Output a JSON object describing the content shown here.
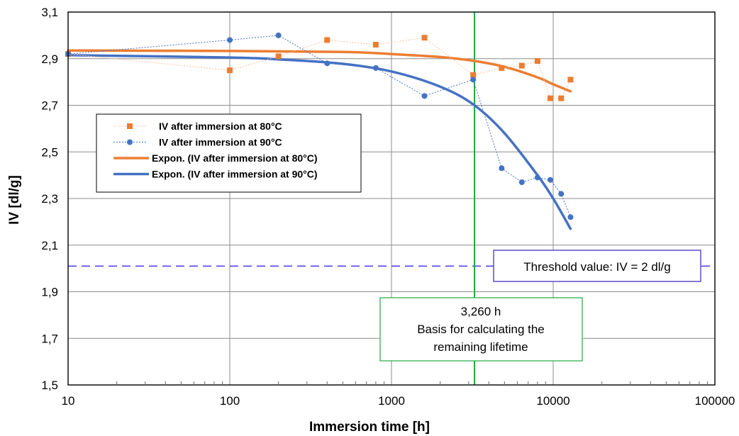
{
  "chart_data": {
    "type": "scatter",
    "xlabel": "Immersion time [h]",
    "ylabel": "IV  [dl/g]",
    "x_scale": "log",
    "xlim": [
      10,
      100000
    ],
    "ylim": [
      1.5,
      3.1
    ],
    "x_ticks": [
      10,
      100,
      1000,
      10000,
      100000
    ],
    "x_tick_labels": [
      "10",
      "100",
      "1000",
      "10000",
      "100000"
    ],
    "y_ticks": [
      1.5,
      1.7,
      1.9,
      2.1,
      2.3,
      2.5,
      2.7,
      2.9,
      3.1
    ],
    "y_tick_labels": [
      "1,5",
      "1,7",
      "1,9",
      "2,1",
      "2,3",
      "2,5",
      "2,7",
      "2,9",
      "3,1"
    ],
    "grid": true,
    "legend_position": "left-middle",
    "series": [
      {
        "name": "IV after immersion at 80°C",
        "kind": "markers",
        "marker": "square",
        "color": "#ED7D31",
        "x": [
          10,
          100,
          200,
          400,
          800,
          1600,
          3200,
          4800,
          6400,
          8000,
          9600,
          11200,
          12800
        ],
        "y": [
          2.92,
          2.85,
          2.91,
          2.98,
          2.96,
          2.99,
          2.83,
          2.86,
          2.87,
          2.89,
          2.73,
          2.73,
          2.81
        ]
      },
      {
        "name": "IV after immersion at 90°C",
        "kind": "markers",
        "marker": "circle",
        "color": "#4472C4",
        "x": [
          10,
          100,
          200,
          400,
          800,
          1600,
          3200,
          4800,
          6400,
          8000,
          9600,
          11200,
          12800
        ],
        "y": [
          2.92,
          2.98,
          3.0,
          2.88,
          2.86,
          2.74,
          2.81,
          2.43,
          2.37,
          2.39,
          2.38,
          2.32,
          2.22
        ]
      },
      {
        "name": "Expon. (IV after immersion at 80°C)",
        "kind": "trend",
        "color": "#ED7D31",
        "x": [
          10,
          100,
          500,
          1000,
          2000,
          3260,
          5000,
          8000,
          10000,
          12800
        ],
        "y": [
          2.935,
          2.933,
          2.929,
          2.92,
          2.907,
          2.89,
          2.865,
          2.82,
          2.79,
          2.76
        ]
      },
      {
        "name": "Expon. (IV after immersion at 90°C)",
        "kind": "trend",
        "color": "#4472C4",
        "x": [
          10,
          100,
          200,
          500,
          1000,
          2000,
          3260,
          5000,
          8000,
          10000,
          12800
        ],
        "y": [
          2.915,
          2.905,
          2.897,
          2.878,
          2.845,
          2.78,
          2.7,
          2.58,
          2.4,
          2.3,
          2.17
        ]
      }
    ],
    "threshold": {
      "y": 2.01,
      "color": "#5A4FF0",
      "label": "Threshold value: IV = 2 dl/g"
    },
    "vertical_marker": {
      "x": 3260,
      "color": "#22AA44",
      "lines": [
        "3,260 h",
        "Basis for calculating the",
        "remaining lifetime"
      ]
    }
  }
}
